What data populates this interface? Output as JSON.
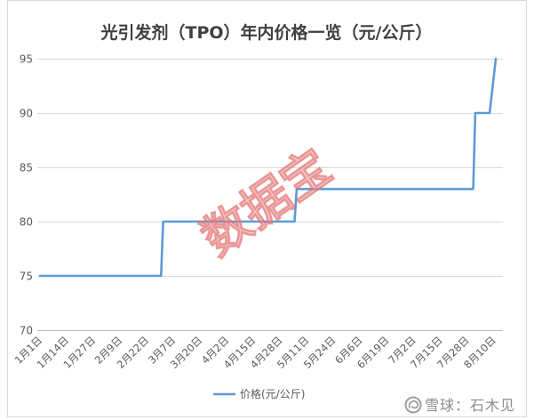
{
  "watermark": "数据宝",
  "footer": {
    "source": "雪球：石木见",
    "logo_icon": "snowball-icon"
  },
  "chart_data": {
    "type": "line",
    "title": "光引发剂（TPO）年内价格一览（元/公斤）",
    "x_ticks": [
      "1月1日",
      "1月14日",
      "1月27日",
      "2月9日",
      "2月22日",
      "3月7日",
      "3月20日",
      "4月2日",
      "4月15日",
      "4月28日",
      "5月11日",
      "5月24日",
      "6月6日",
      "6月19日",
      "7月2日",
      "7月15日",
      "7月28日",
      "8月10日"
    ],
    "y_ticks": [
      70,
      75,
      80,
      85,
      90,
      95
    ],
    "ylim": [
      70,
      95
    ],
    "xlim": [
      "1月1日",
      "8月11日"
    ],
    "grid": true,
    "legend": {
      "position": "bottom"
    },
    "series": [
      {
        "name": "价格(元/公斤)",
        "color": "#5b9bd5",
        "x": [
          "1月1日",
          "3月1日",
          "3月2日",
          "5月5日",
          "5月6日",
          "7月31日",
          "8月1日",
          "8月8日",
          "8月11日"
        ],
        "y": [
          75,
          75,
          80,
          80,
          83,
          83,
          90,
          90,
          95
        ]
      }
    ]
  }
}
